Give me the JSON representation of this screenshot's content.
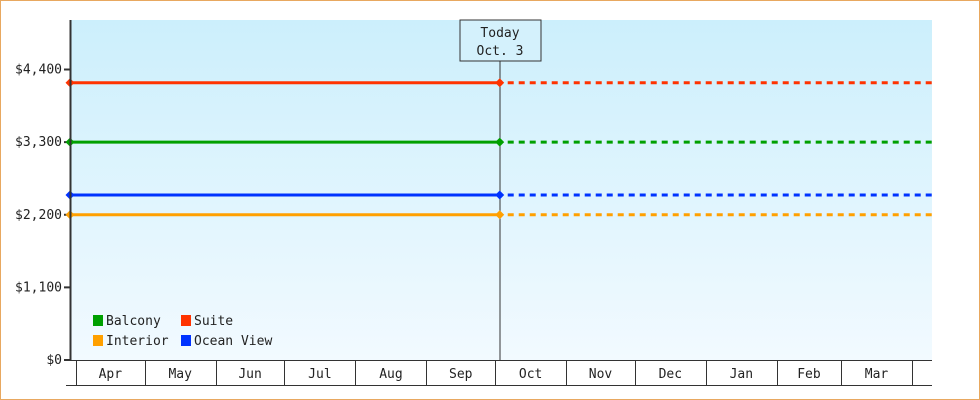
{
  "chart_data": {
    "type": "line",
    "title": "",
    "xlabel": "",
    "ylabel": "",
    "ylim": [
      0,
      5150
    ],
    "y_ticks": [
      0,
      1100,
      2200,
      3300,
      4400
    ],
    "y_tick_labels": [
      "$0",
      "$1,100",
      "$2,200",
      "$3,300",
      "$4,400"
    ],
    "x_categories": [
      "Apr",
      "May",
      "Jun",
      "Jul",
      "Aug",
      "Sep",
      "Oct",
      "Nov",
      "Dec",
      "Jan",
      "Feb",
      "Mar"
    ],
    "grid": false,
    "background_gradient": [
      "#cceffc",
      "#f2faff"
    ],
    "today_marker": {
      "line1": "Today",
      "line2": "Oct. 3",
      "date": "Oct 3"
    },
    "legend": {
      "placement": "bottom-left"
    },
    "series": [
      {
        "name": "Balcony",
        "color": "#00a000",
        "x": [
          "Apr 1",
          "Oct 3"
        ],
        "y": [
          3300,
          3300
        ],
        "projected": true
      },
      {
        "name": "Suite",
        "color": "#ff3300",
        "x": [
          "Apr 1",
          "Oct 3"
        ],
        "y": [
          4200,
          4200
        ],
        "projected": true
      },
      {
        "name": "Interior",
        "color": "#ffa000",
        "x": [
          "Apr 1",
          "Oct 3"
        ],
        "y": [
          2200,
          2200
        ],
        "projected": true
      },
      {
        "name": "Ocean View",
        "color": "#0033ff",
        "x": [
          "Apr 1",
          "Oct 3"
        ],
        "y": [
          2500,
          2500
        ],
        "projected": true
      }
    ]
  }
}
